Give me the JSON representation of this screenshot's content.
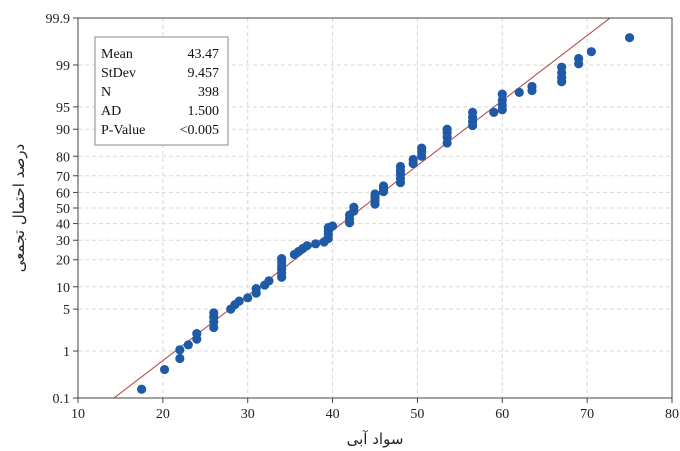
{
  "chart_data": {
    "type": "scatter",
    "subtype": "normal-probability-plot",
    "xlabel": "سواد آبی",
    "ylabel": "درصد احتمال تجمعی",
    "xlim": [
      10,
      80
    ],
    "x_ticks": [
      "10",
      "20",
      "30",
      "40",
      "50",
      "60",
      "70",
      "80"
    ],
    "y_scale": "normal-probability",
    "ylim": [
      0.1,
      99.9
    ],
    "y_ticks": [
      "0.1",
      "1",
      "5",
      "10",
      "20",
      "30",
      "40",
      "50",
      "60",
      "70",
      "80",
      "90",
      "95",
      "99",
      "99.9"
    ],
    "grid": true,
    "point_color": "#1f5aa6",
    "line_color": "#b5504a",
    "fit_line": {
      "mean": 43.47,
      "stdev": 9.457
    },
    "stats": [
      {
        "label": "Mean",
        "value": "43.47"
      },
      {
        "label": "StDev",
        "value": "9.457"
      },
      {
        "label": "N",
        "value": "398"
      },
      {
        "label": "AD",
        "value": "1.500"
      },
      {
        "label": "P-Value",
        "value": "<0.005"
      }
    ],
    "points": [
      {
        "x": 17.5,
        "p": 0.16
      },
      {
        "x": 20.2,
        "p": 0.43
      },
      {
        "x": 22.0,
        "p": 0.72
      },
      {
        "x": 22.0,
        "p": 1.05
      },
      {
        "x": 23.0,
        "p": 1.3
      },
      {
        "x": 24.0,
        "p": 1.65
      },
      {
        "x": 24.0,
        "p": 2.05
      },
      {
        "x": 26.0,
        "p": 2.6
      },
      {
        "x": 26.0,
        "p": 3.2
      },
      {
        "x": 26.0,
        "p": 3.8
      },
      {
        "x": 26.0,
        "p": 4.4
      },
      {
        "x": 28.0,
        "p": 5.0
      },
      {
        "x": 28.5,
        "p": 5.8
      },
      {
        "x": 29.0,
        "p": 6.5
      },
      {
        "x": 30.0,
        "p": 7.2
      },
      {
        "x": 31.0,
        "p": 8.3
      },
      {
        "x": 31.0,
        "p": 9.5
      },
      {
        "x": 32.0,
        "p": 10.5
      },
      {
        "x": 32.5,
        "p": 11.8
      },
      {
        "x": 34.0,
        "p": 13.0
      },
      {
        "x": 34.0,
        "p": 14.5
      },
      {
        "x": 34.0,
        "p": 16.0
      },
      {
        "x": 34.0,
        "p": 17.5
      },
      {
        "x": 34.0,
        "p": 19.0
      },
      {
        "x": 34.0,
        "p": 20.5
      },
      {
        "x": 35.5,
        "p": 22.5
      },
      {
        "x": 36.0,
        "p": 24.0
      },
      {
        "x": 36.5,
        "p": 25.5
      },
      {
        "x": 37.0,
        "p": 27.0
      },
      {
        "x": 38.0,
        "p": 28.0
      },
      {
        "x": 39.0,
        "p": 29.0
      },
      {
        "x": 39.5,
        "p": 31.0
      },
      {
        "x": 39.5,
        "p": 33.5
      },
      {
        "x": 39.5,
        "p": 35.5
      },
      {
        "x": 39.5,
        "p": 37.5
      },
      {
        "x": 40.0,
        "p": 38.5
      },
      {
        "x": 42.0,
        "p": 40.5
      },
      {
        "x": 42.0,
        "p": 43.0
      },
      {
        "x": 42.0,
        "p": 45.5
      },
      {
        "x": 42.5,
        "p": 48.0
      },
      {
        "x": 42.5,
        "p": 50.5
      },
      {
        "x": 45.0,
        "p": 52.5
      },
      {
        "x": 45.0,
        "p": 55.0
      },
      {
        "x": 45.0,
        "p": 57.0
      },
      {
        "x": 45.0,
        "p": 59.0
      },
      {
        "x": 46.0,
        "p": 60.5
      },
      {
        "x": 46.0,
        "p": 62.5
      },
      {
        "x": 46.0,
        "p": 64.0
      },
      {
        "x": 48.0,
        "p": 66.0
      },
      {
        "x": 48.0,
        "p": 68.5
      },
      {
        "x": 48.0,
        "p": 71.0
      },
      {
        "x": 48.0,
        "p": 73.0
      },
      {
        "x": 48.0,
        "p": 75.0
      },
      {
        "x": 49.5,
        "p": 76.5
      },
      {
        "x": 49.5,
        "p": 78.5
      },
      {
        "x": 50.5,
        "p": 80.0
      },
      {
        "x": 50.5,
        "p": 82.0
      },
      {
        "x": 50.5,
        "p": 83.5
      },
      {
        "x": 53.5,
        "p": 85.5
      },
      {
        "x": 53.5,
        "p": 87.5
      },
      {
        "x": 53.5,
        "p": 89.0
      },
      {
        "x": 53.5,
        "p": 90.0
      },
      {
        "x": 56.5,
        "p": 91.0
      },
      {
        "x": 56.5,
        "p": 92.0
      },
      {
        "x": 56.5,
        "p": 93.0
      },
      {
        "x": 56.5,
        "p": 94.0
      },
      {
        "x": 59.0,
        "p": 94.0
      },
      {
        "x": 60.0,
        "p": 94.5
      },
      {
        "x": 60.0,
        "p": 95.3
      },
      {
        "x": 60.0,
        "p": 96.0
      },
      {
        "x": 60.0,
        "p": 96.8
      },
      {
        "x": 62.0,
        "p": 97.0
      },
      {
        "x": 63.5,
        "p": 97.2
      },
      {
        "x": 63.5,
        "p": 97.6
      },
      {
        "x": 67.0,
        "p": 98.0
      },
      {
        "x": 67.0,
        "p": 98.3
      },
      {
        "x": 67.0,
        "p": 98.6
      },
      {
        "x": 67.0,
        "p": 98.9
      },
      {
        "x": 69.0,
        "p": 99.05
      },
      {
        "x": 69.0,
        "p": 99.25
      },
      {
        "x": 70.5,
        "p": 99.45
      },
      {
        "x": 75.0,
        "p": 99.72
      }
    ]
  }
}
